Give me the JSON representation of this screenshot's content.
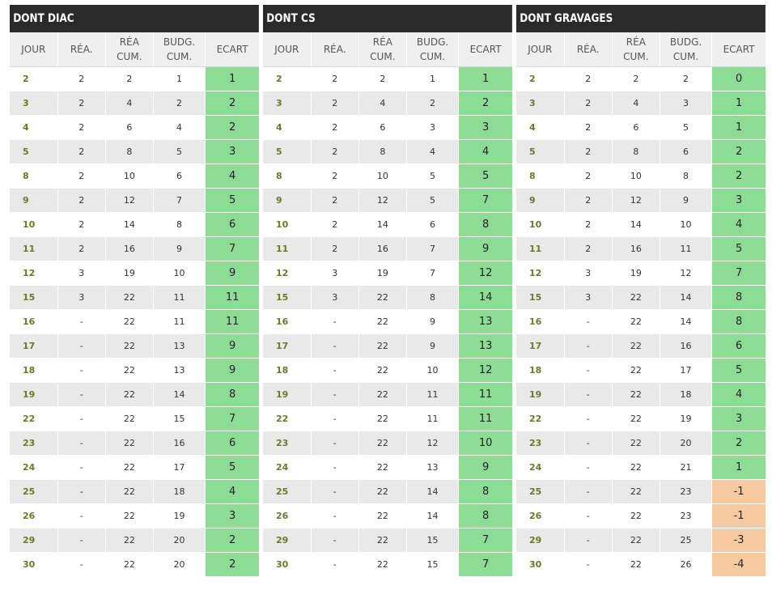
{
  "colors": {
    "header_bg": "#2a2a2a",
    "positive": "#8ddc95",
    "negative": "#f7c9a1",
    "jour_text": "#6a7a2a"
  },
  "panels": [
    {
      "title": "DONT DIAC",
      "headers": {
        "jour": "JOUR",
        "rea": "RÉA.",
        "rea_cum_1": "RÉA",
        "rea_cum_2": "CUM.",
        "budg_cum_1": "BUDG.",
        "budg_cum_2": "CUM.",
        "ecart": "ECART"
      },
      "rows": [
        {
          "jour": "2",
          "rea": "2",
          "rea_cum": "2",
          "budg_cum": "1",
          "ecart": "1"
        },
        {
          "jour": "3",
          "rea": "2",
          "rea_cum": "4",
          "budg_cum": "2",
          "ecart": "2"
        },
        {
          "jour": "4",
          "rea": "2",
          "rea_cum": "6",
          "budg_cum": "4",
          "ecart": "2"
        },
        {
          "jour": "5",
          "rea": "2",
          "rea_cum": "8",
          "budg_cum": "5",
          "ecart": "3"
        },
        {
          "jour": "8",
          "rea": "2",
          "rea_cum": "10",
          "budg_cum": "6",
          "ecart": "4"
        },
        {
          "jour": "9",
          "rea": "2",
          "rea_cum": "12",
          "budg_cum": "7",
          "ecart": "5"
        },
        {
          "jour": "10",
          "rea": "2",
          "rea_cum": "14",
          "budg_cum": "8",
          "ecart": "6"
        },
        {
          "jour": "11",
          "rea": "2",
          "rea_cum": "16",
          "budg_cum": "9",
          "ecart": "7"
        },
        {
          "jour": "12",
          "rea": "3",
          "rea_cum": "19",
          "budg_cum": "10",
          "ecart": "9"
        },
        {
          "jour": "15",
          "rea": "3",
          "rea_cum": "22",
          "budg_cum": "11",
          "ecart": "11"
        },
        {
          "jour": "16",
          "rea": "-",
          "rea_cum": "22",
          "budg_cum": "11",
          "ecart": "11"
        },
        {
          "jour": "17",
          "rea": "-",
          "rea_cum": "22",
          "budg_cum": "13",
          "ecart": "9"
        },
        {
          "jour": "18",
          "rea": "-",
          "rea_cum": "22",
          "budg_cum": "13",
          "ecart": "9"
        },
        {
          "jour": "19",
          "rea": "-",
          "rea_cum": "22",
          "budg_cum": "14",
          "ecart": "8"
        },
        {
          "jour": "22",
          "rea": "-",
          "rea_cum": "22",
          "budg_cum": "15",
          "ecart": "7"
        },
        {
          "jour": "23",
          "rea": "-",
          "rea_cum": "22",
          "budg_cum": "16",
          "ecart": "6"
        },
        {
          "jour": "24",
          "rea": "-",
          "rea_cum": "22",
          "budg_cum": "17",
          "ecart": "5"
        },
        {
          "jour": "25",
          "rea": "-",
          "rea_cum": "22",
          "budg_cum": "18",
          "ecart": "4"
        },
        {
          "jour": "26",
          "rea": "-",
          "rea_cum": "22",
          "budg_cum": "19",
          "ecart": "3"
        },
        {
          "jour": "29",
          "rea": "-",
          "rea_cum": "22",
          "budg_cum": "20",
          "ecart": "2"
        },
        {
          "jour": "30",
          "rea": "-",
          "rea_cum": "22",
          "budg_cum": "20",
          "ecart": "2"
        }
      ]
    },
    {
      "title": "DONT CS",
      "headers": {
        "jour": "JOUR",
        "rea": "RÉA.",
        "rea_cum_1": "RÉA",
        "rea_cum_2": "CUM.",
        "budg_cum_1": "BUDG.",
        "budg_cum_2": "CUM.",
        "ecart": "ECART"
      },
      "rows": [
        {
          "jour": "2",
          "rea": "2",
          "rea_cum": "2",
          "budg_cum": "1",
          "ecart": "1"
        },
        {
          "jour": "3",
          "rea": "2",
          "rea_cum": "4",
          "budg_cum": "2",
          "ecart": "2"
        },
        {
          "jour": "4",
          "rea": "2",
          "rea_cum": "6",
          "budg_cum": "3",
          "ecart": "3"
        },
        {
          "jour": "5",
          "rea": "2",
          "rea_cum": "8",
          "budg_cum": "4",
          "ecart": "4"
        },
        {
          "jour": "8",
          "rea": "2",
          "rea_cum": "10",
          "budg_cum": "5",
          "ecart": "5"
        },
        {
          "jour": "9",
          "rea": "2",
          "rea_cum": "12",
          "budg_cum": "5",
          "ecart": "7"
        },
        {
          "jour": "10",
          "rea": "2",
          "rea_cum": "14",
          "budg_cum": "6",
          "ecart": "8"
        },
        {
          "jour": "11",
          "rea": "2",
          "rea_cum": "16",
          "budg_cum": "7",
          "ecart": "9"
        },
        {
          "jour": "12",
          "rea": "3",
          "rea_cum": "19",
          "budg_cum": "7",
          "ecart": "12"
        },
        {
          "jour": "15",
          "rea": "3",
          "rea_cum": "22",
          "budg_cum": "8",
          "ecart": "14"
        },
        {
          "jour": "16",
          "rea": "-",
          "rea_cum": "22",
          "budg_cum": "9",
          "ecart": "13"
        },
        {
          "jour": "17",
          "rea": "-",
          "rea_cum": "22",
          "budg_cum": "9",
          "ecart": "13"
        },
        {
          "jour": "18",
          "rea": "-",
          "rea_cum": "22",
          "budg_cum": "10",
          "ecart": "12"
        },
        {
          "jour": "19",
          "rea": "-",
          "rea_cum": "22",
          "budg_cum": "11",
          "ecart": "11"
        },
        {
          "jour": "22",
          "rea": "-",
          "rea_cum": "22",
          "budg_cum": "11",
          "ecart": "11"
        },
        {
          "jour": "23",
          "rea": "-",
          "rea_cum": "22",
          "budg_cum": "12",
          "ecart": "10"
        },
        {
          "jour": "24",
          "rea": "-",
          "rea_cum": "22",
          "budg_cum": "13",
          "ecart": "9"
        },
        {
          "jour": "25",
          "rea": "-",
          "rea_cum": "22",
          "budg_cum": "14",
          "ecart": "8"
        },
        {
          "jour": "26",
          "rea": "-",
          "rea_cum": "22",
          "budg_cum": "14",
          "ecart": "8"
        },
        {
          "jour": "29",
          "rea": "-",
          "rea_cum": "22",
          "budg_cum": "15",
          "ecart": "7"
        },
        {
          "jour": "30",
          "rea": "-",
          "rea_cum": "22",
          "budg_cum": "15",
          "ecart": "7"
        }
      ]
    },
    {
      "title": "DONT GRAVAGES",
      "headers": {
        "jour": "JOUR",
        "rea": "RÉA.",
        "rea_cum_1": "RÉA",
        "rea_cum_2": "CUM.",
        "budg_cum_1": "BUDG.",
        "budg_cum_2": "CUM.",
        "ecart": "ECART"
      },
      "rows": [
        {
          "jour": "2",
          "rea": "2",
          "rea_cum": "2",
          "budg_cum": "2",
          "ecart": "0"
        },
        {
          "jour": "3",
          "rea": "2",
          "rea_cum": "4",
          "budg_cum": "3",
          "ecart": "1"
        },
        {
          "jour": "4",
          "rea": "2",
          "rea_cum": "6",
          "budg_cum": "5",
          "ecart": "1"
        },
        {
          "jour": "5",
          "rea": "2",
          "rea_cum": "8",
          "budg_cum": "6",
          "ecart": "2"
        },
        {
          "jour": "8",
          "rea": "2",
          "rea_cum": "10",
          "budg_cum": "8",
          "ecart": "2"
        },
        {
          "jour": "9",
          "rea": "2",
          "rea_cum": "12",
          "budg_cum": "9",
          "ecart": "3"
        },
        {
          "jour": "10",
          "rea": "2",
          "rea_cum": "14",
          "budg_cum": "10",
          "ecart": "4"
        },
        {
          "jour": "11",
          "rea": "2",
          "rea_cum": "16",
          "budg_cum": "11",
          "ecart": "5"
        },
        {
          "jour": "12",
          "rea": "3",
          "rea_cum": "19",
          "budg_cum": "12",
          "ecart": "7"
        },
        {
          "jour": "15",
          "rea": "3",
          "rea_cum": "22",
          "budg_cum": "14",
          "ecart": "8"
        },
        {
          "jour": "16",
          "rea": "-",
          "rea_cum": "22",
          "budg_cum": "14",
          "ecart": "8"
        },
        {
          "jour": "17",
          "rea": "-",
          "rea_cum": "22",
          "budg_cum": "16",
          "ecart": "6"
        },
        {
          "jour": "18",
          "rea": "-",
          "rea_cum": "22",
          "budg_cum": "17",
          "ecart": "5"
        },
        {
          "jour": "19",
          "rea": "-",
          "rea_cum": "22",
          "budg_cum": "18",
          "ecart": "4"
        },
        {
          "jour": "22",
          "rea": "-",
          "rea_cum": "22",
          "budg_cum": "19",
          "ecart": "3"
        },
        {
          "jour": "23",
          "rea": "-",
          "rea_cum": "22",
          "budg_cum": "20",
          "ecart": "2"
        },
        {
          "jour": "24",
          "rea": "-",
          "rea_cum": "22",
          "budg_cum": "21",
          "ecart": "1"
        },
        {
          "jour": "25",
          "rea": "-",
          "rea_cum": "22",
          "budg_cum": "23",
          "ecart": "-1"
        },
        {
          "jour": "26",
          "rea": "-",
          "rea_cum": "22",
          "budg_cum": "23",
          "ecart": "-1"
        },
        {
          "jour": "29",
          "rea": "-",
          "rea_cum": "22",
          "budg_cum": "25",
          "ecart": "-3"
        },
        {
          "jour": "30",
          "rea": "-",
          "rea_cum": "22",
          "budg_cum": "26",
          "ecart": "-4"
        }
      ]
    }
  ]
}
